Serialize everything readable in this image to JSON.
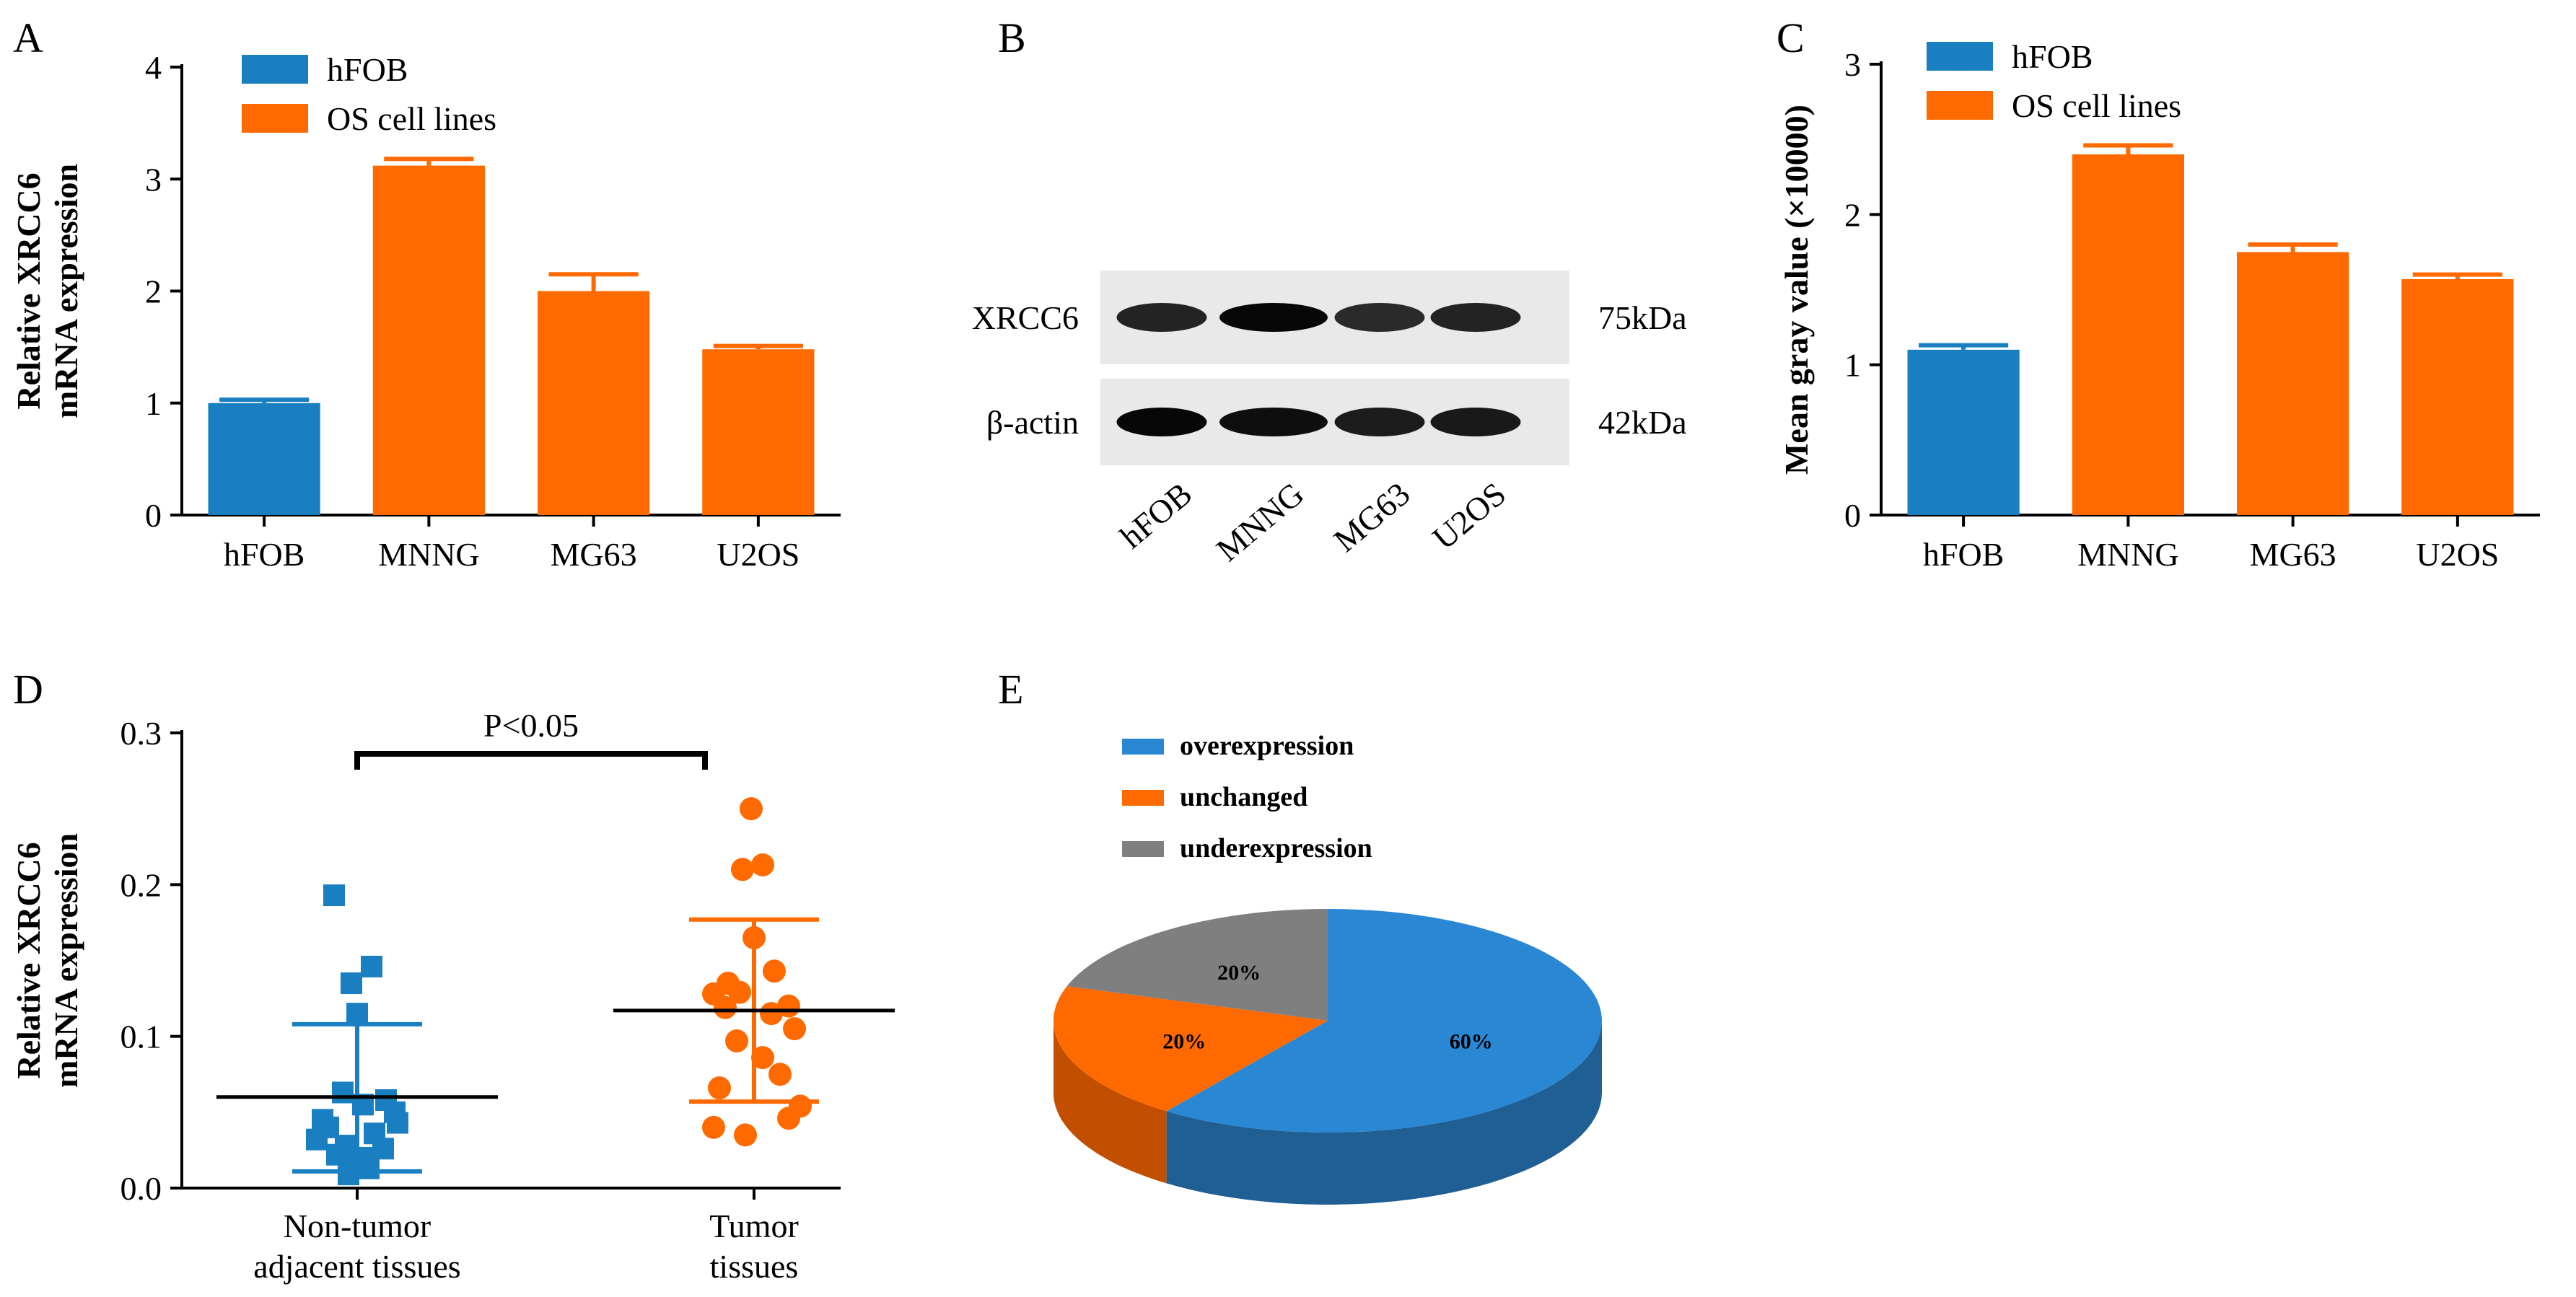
{
  "colors": {
    "blue": "#1a7fc1",
    "orange": "#ff6a00",
    "gray": "#808080",
    "pie_blue": "#2a87d4",
    "pie_orange": "#ff6a00",
    "pie_gray": "#7f7f7f",
    "axis": "#000000"
  },
  "panels": {
    "A": "A",
    "B": "B",
    "C": "C",
    "D": "D",
    "E": "E"
  },
  "western_blot": {
    "rows": [
      {
        "label": "XRCC6",
        "size": "75kDa"
      },
      {
        "label": "β-actin",
        "size": "42kDa"
      }
    ],
    "lanes": [
      "hFOB",
      "MNNG",
      "MG63",
      "U2OS"
    ],
    "band_intensity": {
      "XRCC6": [
        0.75,
        0.95,
        0.7,
        0.75
      ],
      "beta_actin": [
        0.95,
        0.9,
        0.8,
        0.82
      ]
    }
  },
  "chart_data": [
    {
      "panel": "A",
      "type": "bar",
      "categories": [
        "hFOB",
        "MNNG",
        "MG63",
        "U2OS"
      ],
      "values": [
        1.0,
        3.12,
        2.0,
        1.48
      ],
      "errors": [
        0.03,
        0.06,
        0.15,
        0.03
      ],
      "bar_groups": [
        "hFOB",
        "OS cell lines",
        "OS cell lines",
        "OS cell lines"
      ],
      "legend": [
        "hFOB",
        "OS cell lines"
      ],
      "legend_position": "top-left",
      "ylabel_lines": [
        "Relative XRCC6",
        "mRNA expression"
      ],
      "ylim": [
        0,
        4
      ],
      "yticks": [
        0,
        1,
        2,
        3,
        4
      ]
    },
    {
      "panel": "C",
      "type": "bar",
      "categories": [
        "hFOB",
        "MNNG",
        "MG63",
        "U2OS"
      ],
      "values": [
        1.1,
        2.4,
        1.75,
        1.57
      ],
      "errors": [
        0.03,
        0.06,
        0.05,
        0.03
      ],
      "bar_groups": [
        "hFOB",
        "OS cell lines",
        "OS cell lines",
        "OS cell lines"
      ],
      "legend": [
        "hFOB",
        "OS cell lines"
      ],
      "legend_position": "top-left",
      "ylabel_lines": [
        "Mean gray value (×10000)"
      ],
      "ylim": [
        0,
        3
      ],
      "yticks": [
        0,
        1,
        2,
        3
      ]
    },
    {
      "panel": "D",
      "type": "scatter",
      "categories": [
        "Non-tumor adjacent tissues",
        "Tumor tissues"
      ],
      "category_lines": [
        [
          "Non-tumor",
          "adjacent tissues"
        ],
        [
          "Tumor",
          "tissues"
        ]
      ],
      "groups": [
        {
          "name": "Non-tumor adjacent tissues",
          "marker": "square",
          "mean": 0.06,
          "sd_low": 0.011,
          "sd_high": 0.108,
          "points": [
            [
              -0.08,
              0.193
            ],
            [
              0.05,
              0.146
            ],
            [
              -0.02,
              0.135
            ],
            [
              0.0,
              0.115
            ],
            [
              -0.05,
              0.063
            ],
            [
              0.02,
              0.055
            ],
            [
              0.1,
              0.058
            ],
            [
              0.13,
              0.05
            ],
            [
              -0.12,
              0.045
            ],
            [
              0.14,
              0.043
            ],
            [
              -0.1,
              0.04
            ],
            [
              0.06,
              0.036
            ],
            [
              -0.14,
              0.032
            ],
            [
              -0.04,
              0.028
            ],
            [
              0.09,
              0.026
            ],
            [
              -0.07,
              0.022
            ],
            [
              0.03,
              0.02
            ],
            [
              0.0,
              0.016
            ],
            [
              0.04,
              0.013
            ],
            [
              -0.03,
              0.009
            ]
          ]
        },
        {
          "name": "Tumor tissues",
          "marker": "circle",
          "mean": 0.117,
          "sd_low": 0.057,
          "sd_high": 0.177,
          "points": [
            [
              -0.01,
              0.25
            ],
            [
              0.03,
              0.213
            ],
            [
              -0.04,
              0.21
            ],
            [
              0.0,
              0.165
            ],
            [
              -0.09,
              0.135
            ],
            [
              0.07,
              0.143
            ],
            [
              -0.14,
              0.128
            ],
            [
              -0.05,
              0.129
            ],
            [
              0.12,
              0.12
            ],
            [
              -0.1,
              0.119
            ],
            [
              0.06,
              0.115
            ],
            [
              0.14,
              0.105
            ],
            [
              -0.06,
              0.097
            ],
            [
              0.03,
              0.086
            ],
            [
              0.09,
              0.075
            ],
            [
              -0.12,
              0.066
            ],
            [
              0.16,
              0.054
            ],
            [
              -0.14,
              0.04
            ],
            [
              -0.03,
              0.035
            ],
            [
              0.12,
              0.046
            ]
          ]
        }
      ],
      "significance": "P<0.05",
      "ylabel_lines": [
        "Relative XRCC6",
        "mRNA expression"
      ],
      "ylim": [
        0,
        0.3
      ],
      "yticks": [
        0.0,
        0.1,
        0.2,
        0.3
      ],
      "ytick_labels": [
        "0.0",
        "0.1",
        "0.2",
        "0.3"
      ]
    },
    {
      "panel": "E",
      "type": "pie",
      "style": "3d",
      "slices": [
        {
          "label": "overexpression",
          "value": 60,
          "text": "60%"
        },
        {
          "label": "unchanged",
          "value": 20,
          "text": "20%"
        },
        {
          "label": "underexpression",
          "value": 20,
          "text": "20%"
        }
      ],
      "legend": [
        "overexpression",
        "unchanged",
        "underexpression"
      ],
      "legend_position": "top-left"
    }
  ]
}
